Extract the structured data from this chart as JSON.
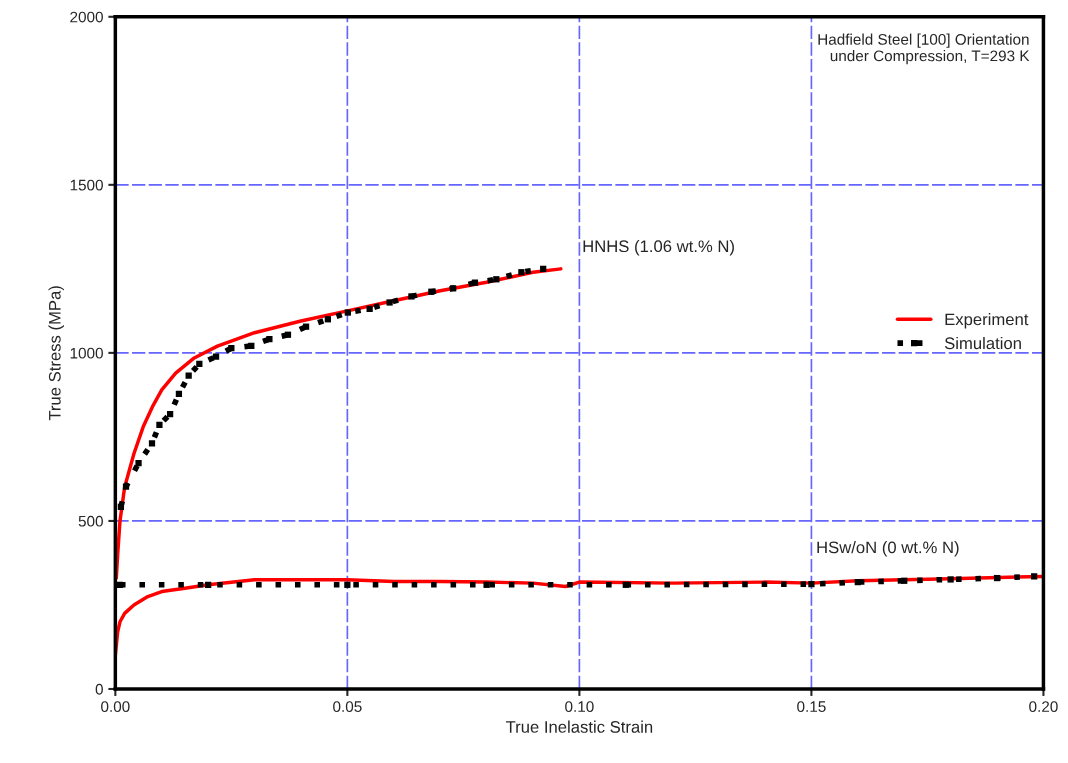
{
  "chart_data": {
    "type": "line",
    "xlabel": "True Inelastic Strain",
    "ylabel": "True Stress (MPa)",
    "xlim": [
      0,
      0.2
    ],
    "ylim": [
      0,
      2000
    ],
    "xticks": [
      {
        "value": 0,
        "label": "0.00"
      },
      {
        "value": 0.05,
        "label": "0.05"
      },
      {
        "value": 0.1,
        "label": "0.10"
      },
      {
        "value": 0.15,
        "label": "0.15"
      },
      {
        "value": 0.2,
        "label": "0.20"
      }
    ],
    "yticks": [
      0,
      500,
      1000,
      1500,
      2000
    ],
    "grid": true,
    "legend": "right",
    "annotations": [
      "Hadfield Steel [100] Orientation\nunder Compression, T=293 K",
      "HNHS (1.06 wt.% N)",
      "HSw/oN (0 wt.% N)"
    ],
    "series": [
      {
        "name": "Experiment",
        "color": "#ff0000",
        "line_style": "solid",
        "x": [
          0.0002,
          0.0005,
          0.001,
          0.002,
          0.004,
          0.006,
          0.008,
          0.01,
          0.013,
          0.017,
          0.022,
          0.03,
          0.04,
          0.05,
          0.06,
          0.07,
          0.08,
          0.09,
          0.096
        ],
        "values": [
          330,
          400,
          500,
          600,
          700,
          780,
          840,
          890,
          940,
          985,
          1020,
          1060,
          1095,
          1125,
          1155,
          1185,
          1210,
          1240,
          1250
        ]
      },
      {
        "name": "Simulation",
        "color": "#000000",
        "line_style": "dotted",
        "marker": "square",
        "x": [
          0.0012,
          0.0023,
          0.005,
          0.0079,
          0.0095,
          0.0118,
          0.0137,
          0.0158,
          0.0181,
          0.0217,
          0.025,
          0.0293,
          0.0332,
          0.0372,
          0.0411,
          0.0458,
          0.0501,
          0.0548,
          0.0591,
          0.0638,
          0.0681,
          0.0728,
          0.0775,
          0.0821,
          0.0875,
          0.0922
        ],
        "values": [
          542,
          602,
          672,
          731,
          786,
          818,
          878,
          932,
          967,
          989,
          1014,
          1021,
          1041,
          1054,
          1078,
          1100,
          1120,
          1131,
          1150,
          1168,
          1182,
          1192,
          1209,
          1219,
          1240,
          1250
        ]
      },
      {
        "color": "#ff0000",
        "line_style": "solid",
        "x": [
          0,
          0.0005,
          0.001,
          0.002,
          0.004,
          0.007,
          0.01,
          0.015,
          0.02,
          0.03,
          0.04,
          0.05,
          0.06,
          0.07,
          0.08,
          0.09,
          0.097,
          0.1,
          0.12,
          0.14,
          0.15,
          0.16,
          0.18,
          0.2
        ],
        "values": [
          100,
          170,
          200,
          225,
          250,
          275,
          290,
          300,
          310,
          325,
          325,
          325,
          320,
          320,
          318,
          315,
          305,
          318,
          315,
          318,
          315,
          322,
          328,
          335
        ]
      },
      {
        "color": "#000000",
        "line_style": "dotted",
        "marker": "square",
        "x": [
          0.001,
          0.02,
          0.05,
          0.08,
          0.11,
          0.15,
          0.16,
          0.17,
          0.18,
          0.19,
          0.198
        ],
        "values": [
          310,
          310,
          310,
          310,
          310,
          312,
          318,
          322,
          326,
          330,
          335
        ]
      }
    ]
  }
}
